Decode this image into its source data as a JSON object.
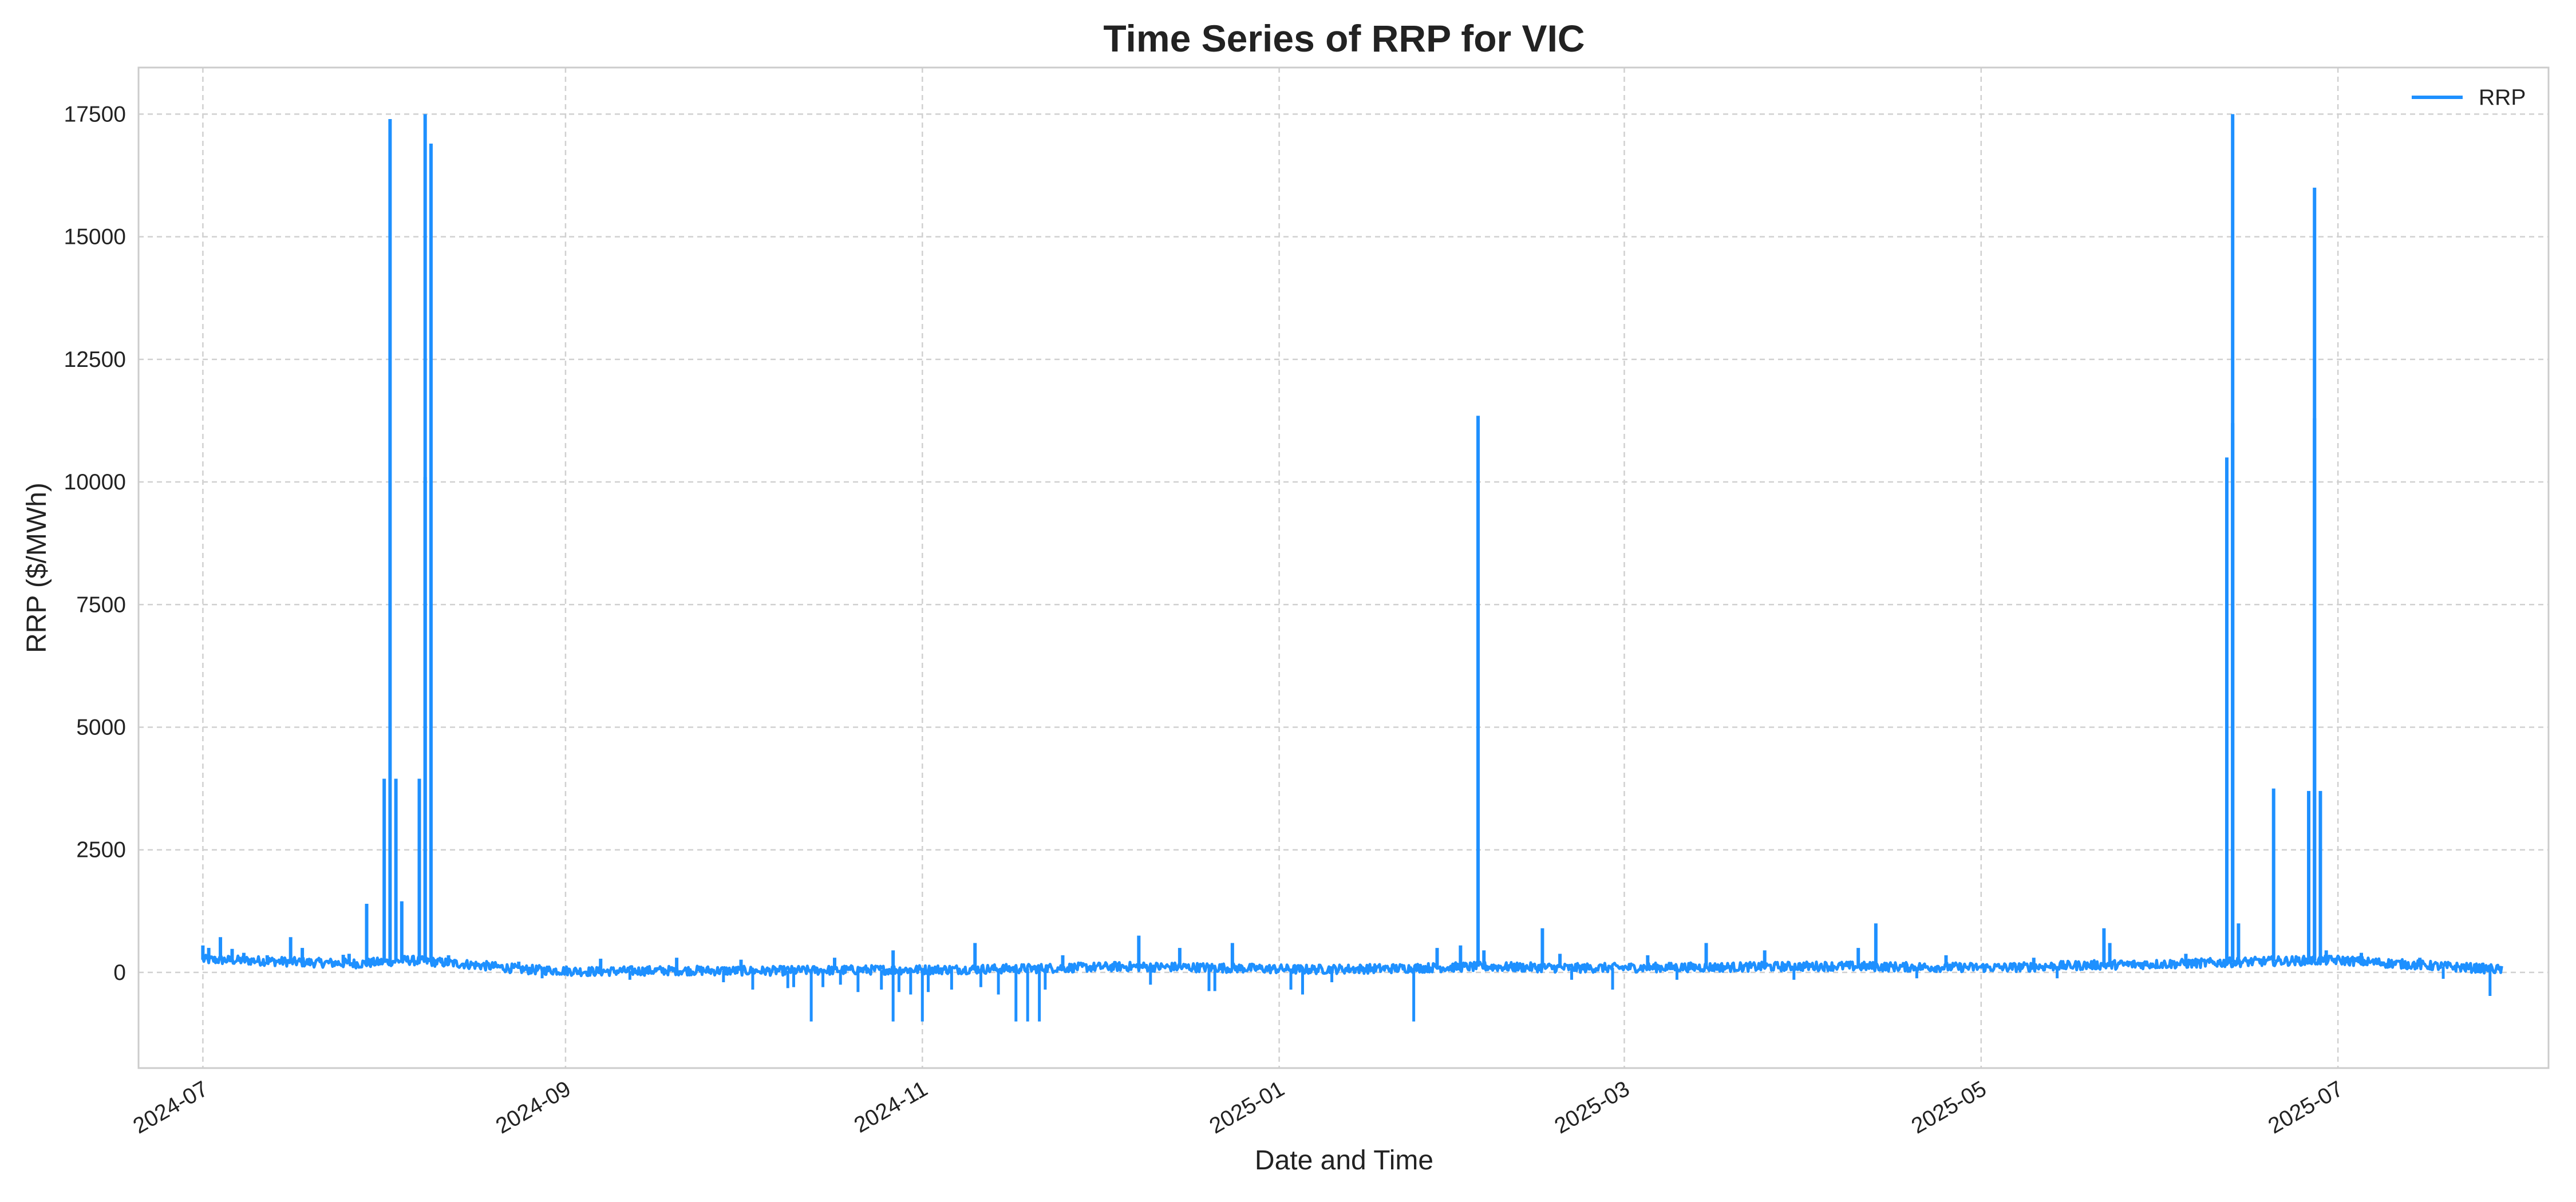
{
  "chart_data": {
    "type": "line",
    "title": "Time Series of RRP for VIC",
    "xlabel": "Date and Time",
    "ylabel": "RRP ($/MWh)",
    "xlim": [
      "2024-06-20",
      "2025-08-06"
    ],
    "ylim": [
      -1950,
      18450
    ],
    "yticks": [
      0,
      2500,
      5000,
      7500,
      10000,
      12500,
      15000,
      17500
    ],
    "xticks": [
      "2024-07",
      "2024-09",
      "2024-11",
      "2025-01",
      "2025-03",
      "2025-05",
      "2025-07"
    ],
    "grid": true,
    "legend_position": "top-right",
    "series": [
      {
        "name": "RRP",
        "color": "#1e90ff",
        "baseline_values": [
          [
            "2024-07-01",
            260
          ],
          [
            "2024-07-10",
            240
          ],
          [
            "2024-07-20",
            200
          ],
          [
            "2024-07-28",
            180
          ],
          [
            "2024-08-05",
            250
          ],
          [
            "2024-08-15",
            170
          ],
          [
            "2024-08-25",
            60
          ],
          [
            "2024-09-05",
            20
          ],
          [
            "2024-09-20",
            40
          ],
          [
            "2024-10-05",
            30
          ],
          [
            "2024-10-20",
            50
          ],
          [
            "2024-11-05",
            60
          ],
          [
            "2024-11-20",
            80
          ],
          [
            "2024-12-05",
            120
          ],
          [
            "2024-12-20",
            100
          ],
          [
            "2025-01-05",
            60
          ],
          [
            "2025-01-20",
            80
          ],
          [
            "2025-02-05",
            120
          ],
          [
            "2025-02-20",
            90
          ],
          [
            "2025-03-05",
            100
          ],
          [
            "2025-03-20",
            110
          ],
          [
            "2025-04-05",
            130
          ],
          [
            "2025-04-20",
            110
          ],
          [
            "2025-05-05",
            100
          ],
          [
            "2025-05-20",
            150
          ],
          [
            "2025-06-05",
            180
          ],
          [
            "2025-06-20",
            230
          ],
          [
            "2025-07-01",
            250
          ],
          [
            "2025-07-15",
            150
          ],
          [
            "2025-07-29",
            60
          ]
        ],
        "spikes": [
          [
            "2024-07-01",
            550
          ],
          [
            "2024-07-02",
            500
          ],
          [
            "2024-07-03",
            330
          ],
          [
            "2024-07-04",
            720
          ],
          [
            "2024-07-06",
            480
          ],
          [
            "2024-07-08",
            400
          ],
          [
            "2024-07-12",
            350
          ],
          [
            "2024-07-16",
            720
          ],
          [
            "2024-07-18",
            500
          ],
          [
            "2024-07-25",
            360
          ],
          [
            "2024-07-26",
            380
          ],
          [
            "2024-07-29",
            1400
          ],
          [
            "2024-08-01",
            3950
          ],
          [
            "2024-08-02",
            17400
          ],
          [
            "2024-08-03",
            3950
          ],
          [
            "2024-08-04",
            1450
          ],
          [
            "2024-08-07",
            3950
          ],
          [
            "2024-08-08",
            17500
          ],
          [
            "2024-08-08",
            10100
          ],
          [
            "2024-08-09",
            16900
          ],
          [
            "2024-08-12",
            350
          ],
          [
            "2024-08-24",
            220
          ],
          [
            "2024-09-07",
            280
          ],
          [
            "2024-09-20",
            300
          ],
          [
            "2024-10-01",
            260
          ],
          [
            "2024-10-17",
            300
          ],
          [
            "2024-10-27",
            450
          ],
          [
            "2024-11-10",
            600
          ],
          [
            "2024-11-25",
            350
          ],
          [
            "2024-12-08",
            750
          ],
          [
            "2024-12-15",
            500
          ],
          [
            "2024-12-24",
            600
          ],
          [
            "2025-01-28",
            500
          ],
          [
            "2025-02-01",
            550
          ],
          [
            "2025-02-04",
            11350
          ],
          [
            "2025-02-05",
            450
          ],
          [
            "2025-02-15",
            900
          ],
          [
            "2025-02-18",
            380
          ],
          [
            "2025-03-05",
            350
          ],
          [
            "2025-03-15",
            600
          ],
          [
            "2025-03-25",
            450
          ],
          [
            "2025-04-10",
            500
          ],
          [
            "2025-04-13",
            1000
          ],
          [
            "2025-04-25",
            350
          ],
          [
            "2025-05-10",
            300
          ],
          [
            "2025-05-22",
            900
          ],
          [
            "2025-05-23",
            600
          ],
          [
            "2025-06-05",
            380
          ],
          [
            "2025-06-12",
            10500
          ],
          [
            "2025-06-13",
            11200
          ],
          [
            "2025-06-13",
            17500
          ],
          [
            "2025-06-14",
            1000
          ],
          [
            "2025-06-20",
            3750
          ],
          [
            "2025-06-26",
            3700
          ],
          [
            "2025-06-27",
            11300
          ],
          [
            "2025-06-27",
            16000
          ],
          [
            "2025-06-28",
            3700
          ],
          [
            "2025-06-29",
            450
          ],
          [
            "2025-07-05",
            400
          ],
          [
            "2025-07-15",
            300
          ]
        ],
        "dips": [
          [
            "2024-08-28",
            -120
          ],
          [
            "2024-09-12",
            -150
          ],
          [
            "2024-09-28",
            -200
          ],
          [
            "2024-10-03",
            -350
          ],
          [
            "2024-10-09",
            -320
          ],
          [
            "2024-10-10",
            -300
          ],
          [
            "2024-10-13",
            -1000
          ],
          [
            "2024-10-15",
            -300
          ],
          [
            "2024-10-18",
            -250
          ],
          [
            "2024-10-21",
            -400
          ],
          [
            "2024-10-25",
            -350
          ],
          [
            "2024-10-27",
            -1000
          ],
          [
            "2024-10-28",
            -400
          ],
          [
            "2024-10-30",
            -450
          ],
          [
            "2024-11-01",
            -1000
          ],
          [
            "2024-11-02",
            -400
          ],
          [
            "2024-11-06",
            -350
          ],
          [
            "2024-11-11",
            -300
          ],
          [
            "2024-11-14",
            -450
          ],
          [
            "2024-11-17",
            -1000
          ],
          [
            "2024-11-19",
            -1000
          ],
          [
            "2024-11-21",
            -1000
          ],
          [
            "2024-11-22",
            -350
          ],
          [
            "2024-12-10",
            -250
          ],
          [
            "2024-12-20",
            -380
          ],
          [
            "2024-12-21",
            -380
          ],
          [
            "2025-01-03",
            -350
          ],
          [
            "2025-01-05",
            -450
          ],
          [
            "2025-01-10",
            -200
          ],
          [
            "2025-01-24",
            -1000
          ],
          [
            "2025-02-20",
            -150
          ],
          [
            "2025-02-27",
            -350
          ],
          [
            "2025-03-10",
            -150
          ],
          [
            "2025-03-30",
            -150
          ],
          [
            "2025-04-20",
            -120
          ],
          [
            "2025-05-14",
            -120
          ],
          [
            "2025-07-19",
            -130
          ],
          [
            "2025-07-27",
            -480
          ]
        ]
      }
    ]
  }
}
